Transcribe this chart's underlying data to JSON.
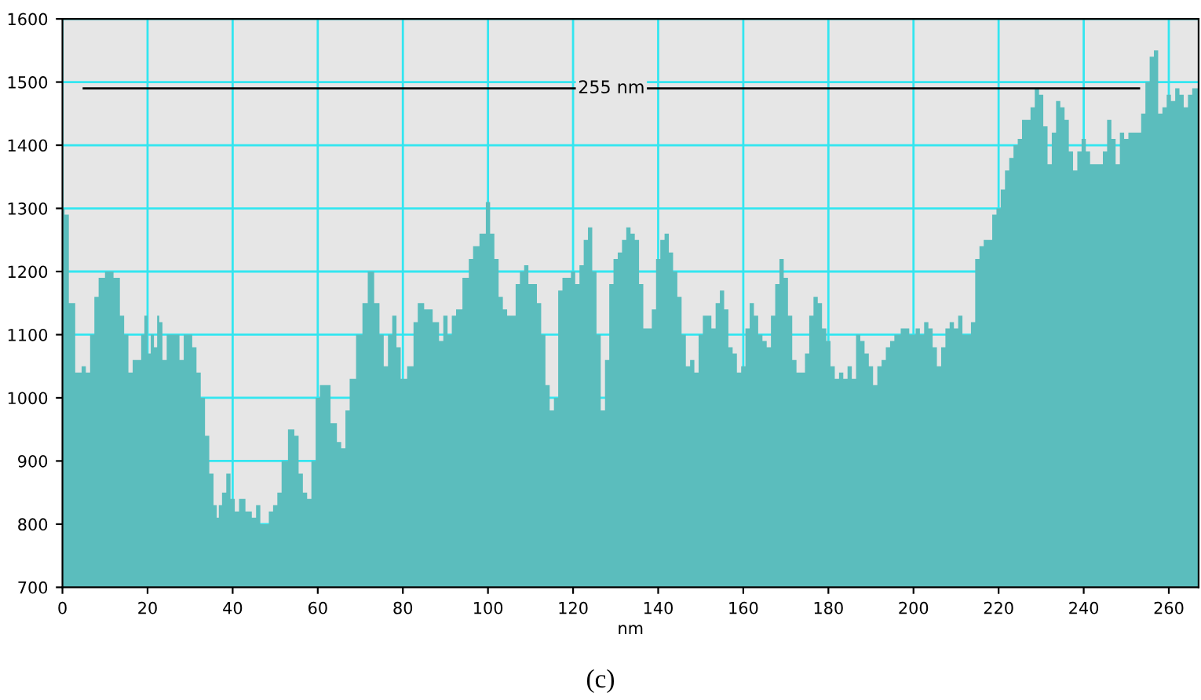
{
  "chart_data": {
    "type": "area",
    "xlabel": "nm",
    "x": [
      0,
      1,
      2,
      4,
      5,
      6,
      7,
      8,
      9,
      11,
      13,
      14,
      15,
      16,
      17,
      18,
      19,
      19.5,
      20.5,
      21,
      22,
      22.5,
      23,
      24,
      25,
      27,
      28,
      29,
      30,
      31,
      32,
      33,
      34,
      35,
      36,
      36.5,
      37,
      38,
      39,
      40,
      41,
      42,
      44,
      45,
      46,
      47,
      48,
      49,
      50,
      51,
      52,
      54,
      55,
      56,
      57,
      58,
      59,
      60,
      61,
      62,
      64,
      65,
      66,
      67,
      68,
      70,
      71,
      72.5,
      74,
      75,
      76,
      77,
      78,
      79,
      80,
      82,
      83,
      84,
      86,
      88,
      89,
      90,
      91,
      92,
      93,
      95,
      96,
      97,
      99,
      100,
      101,
      102,
      103,
      104,
      105,
      106,
      107,
      108,
      109,
      110,
      111,
      112,
      113,
      114,
      115,
      116,
      117,
      118,
      119,
      120,
      121,
      122,
      123,
      124,
      125,
      126,
      127,
      128,
      129,
      130,
      131,
      132,
      133,
      134,
      135,
      136,
      137,
      138,
      139,
      140,
      141,
      142,
      143,
      144,
      145,
      146,
      147,
      148,
      149,
      150,
      151,
      152,
      153,
      154,
      155,
      156,
      157,
      158,
      159,
      160,
      161,
      162,
      163,
      164,
      165,
      166,
      167,
      168,
      169,
      170,
      171,
      172,
      173,
      174,
      175,
      176,
      177,
      178,
      179,
      180,
      181,
      182,
      183,
      184,
      185,
      186,
      187,
      188,
      189,
      190,
      191,
      192,
      193,
      194,
      195,
      196,
      198,
      200,
      201,
      202,
      203,
      204,
      205,
      206,
      207,
      208,
      209,
      210,
      211,
      212,
      213,
      214,
      215,
      216,
      217,
      218,
      219,
      220,
      221,
      222,
      223,
      224,
      225,
      226,
      227,
      228,
      229,
      230,
      231,
      232,
      233,
      234,
      235,
      236,
      237,
      238,
      239,
      240,
      241,
      242,
      243,
      244,
      245,
      246,
      247,
      248,
      249,
      250,
      251,
      252,
      253,
      254,
      255,
      256,
      257,
      258,
      259,
      260,
      261,
      262,
      263,
      264,
      265,
      266,
      267
    ],
    "series": [
      {
        "color": "#5bbdbd",
        "values": [
          1300,
          1290,
          1150,
          1040,
          1050,
          1040,
          1100,
          1160,
          1190,
          1200,
          1190,
          1130,
          1100,
          1040,
          1060,
          1060,
          1100,
          1130,
          1070,
          1100,
          1080,
          1130,
          1120,
          1060,
          1100,
          1100,
          1060,
          1100,
          1100,
          1080,
          1040,
          1000,
          940,
          880,
          830,
          810,
          830,
          850,
          880,
          840,
          820,
          840,
          820,
          810,
          830,
          800,
          800,
          820,
          830,
          850,
          900,
          950,
          940,
          880,
          850,
          840,
          900,
          1000,
          1020,
          1020,
          960,
          930,
          920,
          980,
          1030,
          1100,
          1150,
          1200,
          1150,
          1100,
          1050,
          1100,
          1130,
          1080,
          1030,
          1050,
          1120,
          1150,
          1140,
          1120,
          1090,
          1130,
          1100,
          1130,
          1140,
          1190,
          1220,
          1240,
          1260,
          1310,
          1260,
          1220,
          1160,
          1140,
          1130,
          1130,
          1180,
          1200,
          1210,
          1180,
          1180,
          1150,
          1100,
          1020,
          980,
          1000,
          1170,
          1190,
          1190,
          1200,
          1180,
          1210,
          1250,
          1270,
          1200,
          1100,
          980,
          1060,
          1180,
          1220,
          1230,
          1250,
          1270,
          1260,
          1250,
          1180,
          1110,
          1110,
          1140,
          1220,
          1250,
          1260,
          1230,
          1200,
          1160,
          1100,
          1050,
          1060,
          1040,
          1100,
          1130,
          1130,
          1110,
          1150,
          1170,
          1140,
          1080,
          1070,
          1040,
          1050,
          1110,
          1150,
          1130,
          1100,
          1090,
          1080,
          1130,
          1180,
          1220,
          1190,
          1130,
          1060,
          1040,
          1040,
          1070,
          1130,
          1160,
          1150,
          1110,
          1090,
          1050,
          1030,
          1040,
          1030,
          1050,
          1030,
          1100,
          1090,
          1070,
          1050,
          1020,
          1050,
          1060,
          1080,
          1090,
          1100,
          1110,
          1100,
          1110,
          1100,
          1120,
          1110,
          1080,
          1050,
          1080,
          1110,
          1120,
          1110,
          1130,
          1100,
          1100,
          1120,
          1220,
          1240,
          1250,
          1250,
          1290,
          1300,
          1330,
          1360,
          1380,
          1400,
          1410,
          1440,
          1440,
          1460,
          1490,
          1480,
          1430,
          1370,
          1420,
          1470,
          1460,
          1440,
          1390,
          1360,
          1390,
          1410,
          1390,
          1370,
          1370,
          1370,
          1390,
          1440,
          1410,
          1370,
          1420,
          1410,
          1420,
          1420,
          1420,
          1450,
          1500,
          1540,
          1550,
          1450,
          1460,
          1480,
          1470,
          1490,
          1480,
          1460,
          1480,
          1490,
          1490
        ]
      },
      {
        "type": "line",
        "name": "255 nm",
        "color": "#000000",
        "x": [
          5,
          253
        ],
        "values": [
          1490,
          1490
        ]
      }
    ],
    "xlim": [
      0,
      267
    ],
    "ylim": [
      700,
      1600
    ],
    "xticks": [
      0,
      20,
      40,
      60,
      80,
      100,
      120,
      140,
      160,
      180,
      200,
      220,
      240,
      260
    ],
    "yticks": [
      700,
      800,
      900,
      1000,
      1100,
      1200,
      1300,
      1400,
      1500,
      1600
    ],
    "grid": true,
    "annotations": [
      "(c)"
    ]
  }
}
